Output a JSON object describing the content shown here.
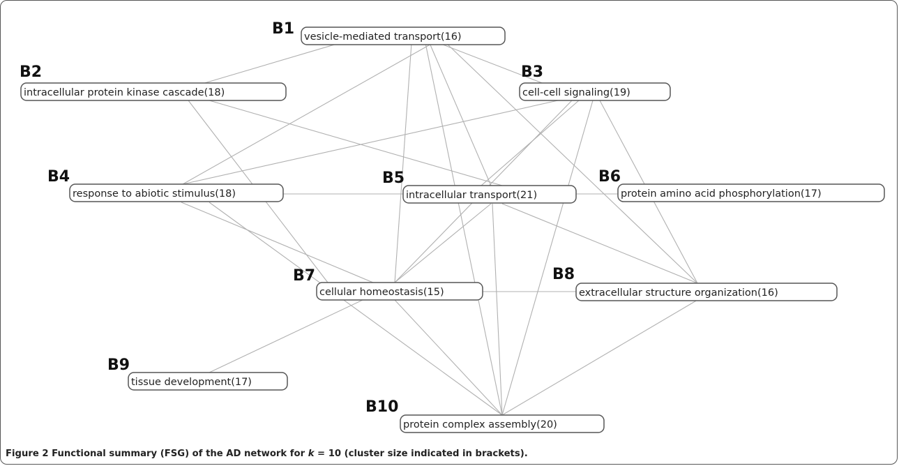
{
  "diagram": {
    "nodes": [
      {
        "id": "B1",
        "label": "vesicle-mediated transport(16)"
      },
      {
        "id": "B2",
        "label": "intracellular protein kinase cascade(18)"
      },
      {
        "id": "B3",
        "label": "cell-cell signaling(19)"
      },
      {
        "id": "B4",
        "label": "response to abiotic stimulus(18)"
      },
      {
        "id": "B5",
        "label": "intracellular transport(21)"
      },
      {
        "id": "B6",
        "label": "protein amino acid phosphorylation(17)"
      },
      {
        "id": "B7",
        "label": "cellular homeostasis(15)"
      },
      {
        "id": "B8",
        "label": "extracellular structure organization(16)"
      },
      {
        "id": "B9",
        "label": "tissue development(17)"
      },
      {
        "id": "B10",
        "label": "protein complex assembly(20)"
      }
    ],
    "edges": [
      [
        "B1",
        "B2"
      ],
      [
        "B1",
        "B3"
      ],
      [
        "B1",
        "B4"
      ],
      [
        "B1",
        "B5"
      ],
      [
        "B1",
        "B7"
      ],
      [
        "B1",
        "B8"
      ],
      [
        "B1",
        "B10"
      ],
      [
        "B2",
        "B5"
      ],
      [
        "B2",
        "B7"
      ],
      [
        "B3",
        "B4"
      ],
      [
        "B3",
        "B5"
      ],
      [
        "B3",
        "B7"
      ],
      [
        "B3",
        "B8"
      ],
      [
        "B3",
        "B10"
      ],
      [
        "B4",
        "B5"
      ],
      [
        "B4",
        "B7"
      ],
      [
        "B4",
        "B10"
      ],
      [
        "B5",
        "B6"
      ],
      [
        "B5",
        "B7"
      ],
      [
        "B5",
        "B8"
      ],
      [
        "B5",
        "B10"
      ],
      [
        "B7",
        "B8"
      ],
      [
        "B7",
        "B9"
      ],
      [
        "B7",
        "B10"
      ],
      [
        "B8",
        "B10"
      ]
    ]
  },
  "caption": {
    "figure_label": "Figure 2",
    "text_before": " Functional summary (FSG) of the AD network for ",
    "variable": "k",
    "text_after": " = 10 (cluster size indicated in brackets)."
  }
}
